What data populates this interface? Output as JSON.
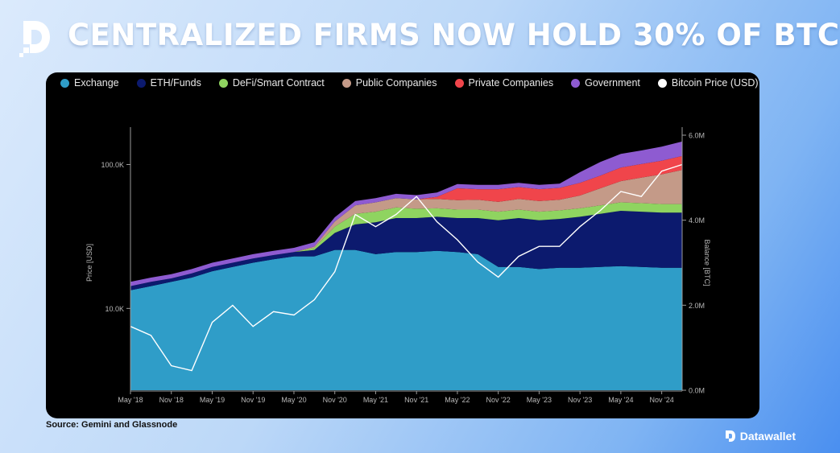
{
  "header": {
    "title": "CENTRALIZED FIRMS NOW HOLD 30% OF BTC"
  },
  "footer": {
    "source": "Source: Gemini and Glassnode",
    "brand": "Datawallet"
  },
  "colors": {
    "Government": "#8e5bd1",
    "Private Companies": "#f0454b",
    "Public Companies": "#c49a88",
    "DeFi/Smart Contract": "#8fd460",
    "ETH/Funds": "#0c1a6e",
    "Exchange": "#2f9dc8",
    "Bitcoin Price (USD)": "#ffffff"
  },
  "chart_data": {
    "type": "area",
    "title": "",
    "legend_position": "top",
    "x": [
      "2018-05",
      "2018-08",
      "2018-11",
      "2019-02",
      "2019-05",
      "2019-08",
      "2019-11",
      "2020-02",
      "2020-05",
      "2020-08",
      "2020-11",
      "2021-02",
      "2021-05",
      "2021-08",
      "2021-11",
      "2022-02",
      "2022-05",
      "2022-08",
      "2022-11",
      "2023-02",
      "2023-05",
      "2023-08",
      "2023-11",
      "2024-02",
      "2024-05",
      "2024-08",
      "2024-11",
      "2025-02"
    ],
    "x_ticks": [
      "May '18",
      "Nov '18",
      "May '19",
      "Nov '19",
      "May '20",
      "Nov '20",
      "May '21",
      "Nov '21",
      "May '22",
      "Nov '22",
      "May '23",
      "Nov '23",
      "May '24",
      "Nov '24"
    ],
    "y_right": {
      "label": "Balance [BTC]",
      "ticks": [
        "0.0M",
        "2.0M",
        "4.0M",
        "6.0M"
      ],
      "range": [
        0,
        6000000
      ]
    },
    "y_left": {
      "label": "Price [USD]",
      "ticks": [
        "10.0K",
        "100.0K"
      ],
      "scale": "log",
      "range": [
        2700,
        160000
      ]
    },
    "series": [
      {
        "name": "Exchange",
        "axis": "right",
        "values": [
          2350000,
          2450000,
          2550000,
          2650000,
          2800000,
          2900000,
          3000000,
          3080000,
          3150000,
          3150000,
          3300000,
          3300000,
          3200000,
          3250000,
          3250000,
          3280000,
          3250000,
          3200000,
          2900000,
          2900000,
          2850000,
          2880000,
          2880000,
          2900000,
          2920000,
          2900000,
          2880000,
          2880000
        ]
      },
      {
        "name": "ETH/Funds",
        "axis": "right",
        "values": [
          100000,
          100000,
          80000,
          100000,
          100000,
          100000,
          100000,
          100000,
          100000,
          150000,
          400000,
          600000,
          750000,
          800000,
          800000,
          800000,
          800000,
          850000,
          1100000,
          1150000,
          1150000,
          1150000,
          1200000,
          1250000,
          1300000,
          1300000,
          1300000,
          1300000
        ]
      },
      {
        "name": "DeFi/Smart Contract",
        "axis": "right",
        "values": [
          0,
          0,
          0,
          0,
          0,
          0,
          0,
          0,
          0,
          50000,
          150000,
          250000,
          250000,
          250000,
          220000,
          200000,
          200000,
          200000,
          200000,
          200000,
          200000,
          200000,
          200000,
          200000,
          200000,
          200000,
          200000,
          200000
        ]
      },
      {
        "name": "Public Companies",
        "axis": "right",
        "values": [
          0,
          0,
          0,
          0,
          0,
          0,
          0,
          0,
          0,
          30000,
          120000,
          200000,
          220000,
          220000,
          220000,
          220000,
          220000,
          230000,
          230000,
          250000,
          250000,
          250000,
          300000,
          400000,
          500000,
          600000,
          700000,
          800000
        ]
      },
      {
        "name": "Private Companies",
        "axis": "right",
        "values": [
          0,
          0,
          0,
          0,
          0,
          0,
          0,
          0,
          0,
          0,
          0,
          0,
          0,
          0,
          0,
          50000,
          280000,
          250000,
          300000,
          280000,
          280000,
          280000,
          300000,
          300000,
          320000,
          320000,
          320000,
          330000
        ]
      },
      {
        "name": "Government",
        "axis": "right",
        "values": [
          100000,
          100000,
          100000,
          100000,
          100000,
          100000,
          100000,
          100000,
          100000,
          100000,
          100000,
          100000,
          100000,
          100000,
          100000,
          100000,
          100000,
          100000,
          100000,
          100000,
          100000,
          100000,
          250000,
          320000,
          320000,
          320000,
          330000,
          340000
        ]
      },
      {
        "name": "Bitcoin Price (USD)",
        "axis": "left",
        "type": "line",
        "values": [
          7500,
          6500,
          4000,
          3700,
          8000,
          10500,
          7500,
          9500,
          9000,
          11500,
          18000,
          45000,
          37000,
          45000,
          60000,
          40000,
          30000,
          21000,
          16500,
          23000,
          27000,
          27000,
          37000,
          48000,
          65000,
          60000,
          90000,
          100000
        ]
      }
    ]
  }
}
